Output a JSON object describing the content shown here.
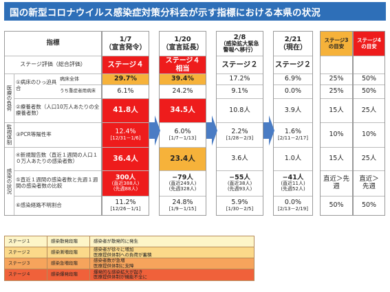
{
  "title": "国の新型コロナウイルス感染症対策分科会が示す指標における本県の状況",
  "header": {
    "indicator": "指標",
    "col1": {
      "line1": "1/7",
      "line2": "（宣言発令）"
    },
    "col2": {
      "line1": "1/20",
      "line2": "（宣言延長）"
    },
    "col3": {
      "line1": "2/8",
      "line2": "（感染拡大緊急",
      "line3": "警報へ移行）"
    },
    "col4": {
      "line1": "2/21",
      "line2": "（現在）"
    },
    "col5": {
      "line1": "ステージ3",
      "line2": "の目安"
    },
    "col6": {
      "line1": "ステージ4",
      "line2": "の目安"
    }
  },
  "left": {
    "stage_eval": "ステージ評価（総合評価）",
    "group_medical": "医療の負荷",
    "group_monitor": "監視体制",
    "group_infection": "感染の状況",
    "bed": "①病床のひっ迫具合",
    "bed_all": "病床全体",
    "bed_severe": "うち重症者用病床",
    "patients": "②療養者数（人口10万人あたりの全療養者数）",
    "pcr": "③PCR等陽性率",
    "new_cases": "④新規報告数（直近１週間の人口１０万人あたりの感染者数）",
    "ratio": "⑤直近１週間の感染者数と先週１週間の感染者数の比較",
    "unknown": "⑥感染経路不明割合"
  },
  "columns": [
    {
      "stage": "ステージ４",
      "stage_sub": "",
      "bed_all": "29.7%",
      "bed_severe": "6.1%",
      "patients": "41.8人",
      "pcr": "12.4%",
      "pcr_sub": "[12/31－1/6]",
      "new_cases": "36.4人",
      "ratio": "300人",
      "ratio_sub1": "(直近388人)",
      "ratio_sub2": "(先週88人)",
      "unknown": "11.2%",
      "unknown_sub": "[12/26－1/1]"
    },
    {
      "stage": "ステージ４",
      "stage_sub": "相当",
      "bed_all": "39.4%",
      "bed_severe": "24.2%",
      "patients": "34.5人",
      "pcr": "6.0%",
      "pcr_sub": "[1/7－1/13]",
      "new_cases": "23.4人",
      "ratio": "−79人",
      "ratio_sub1": "(直近249人)",
      "ratio_sub2": "(先週328人)",
      "unknown": "24.8%",
      "unknown_sub": "[1/9－1/15]"
    },
    {
      "stage": "ステージ２",
      "stage_sub": "",
      "bed_all": "17.2%",
      "bed_severe": "9.1%",
      "patients": "10.8人",
      "pcr": "2.2%",
      "pcr_sub": "[1/28－2/3]",
      "new_cases": "3.6人",
      "ratio": "−55人",
      "ratio_sub1": "(直近38人)",
      "ratio_sub2": "(先週93人)",
      "unknown": "5.9%",
      "unknown_sub": "[1/30－2/5]"
    },
    {
      "stage": "ステージ２",
      "stage_sub": "",
      "bed_all": "6.9%",
      "bed_severe": "0.0%",
      "patients": "3.9人",
      "pcr": "1.6%",
      "pcr_sub": "[2/11－2/17]",
      "new_cases": "1.0人",
      "ratio": "−41人",
      "ratio_sub1": "(直近11人)",
      "ratio_sub2": "(先週52人)",
      "unknown": "0.0%",
      "unknown_sub": "[2/13－2/19]"
    }
  ],
  "targets": {
    "s3": {
      "bed_all": "25%",
      "bed_severe": "25%",
      "patients": "15人",
      "pcr": "10%",
      "new_cases": "15人",
      "ratio": "直近＞先週",
      "unknown": "50%"
    },
    "s4": {
      "bed_all": "50%",
      "bed_severe": "50%",
      "patients": "25人",
      "pcr": "10%",
      "new_cases": "25人",
      "ratio": "直近＞先週",
      "unknown": "50%"
    }
  },
  "legend": [
    {
      "stage": "ステージ１",
      "phase": "感染散発段階",
      "desc": "感染者が散発的に発生",
      "desc2": "",
      "color": "#fdf5c8"
    },
    {
      "stage": "ステージ２",
      "phase": "感染漸増段階",
      "desc": "感染者が徐々に増加",
      "desc2": "医療提供体制への負荷が蓄積",
      "color": "#fbd98a"
    },
    {
      "stage": "ステージ３",
      "phase": "感染急増段階",
      "desc": "感染者数が急増",
      "desc2": "医療提供体制に支障",
      "color": "#f6a45c"
    },
    {
      "stage": "ステージ４",
      "phase": "感染爆発段階",
      "desc": "爆発的な感染拡大が起き",
      "desc2": "医療提供体制が機能不全に",
      "color": "#f0613a"
    }
  ],
  "colors": {
    "title_bg": "#2e6fb8",
    "red": "#ee1c1c",
    "orange": "#f6b23a",
    "arrow": "#4a7cc4"
  }
}
